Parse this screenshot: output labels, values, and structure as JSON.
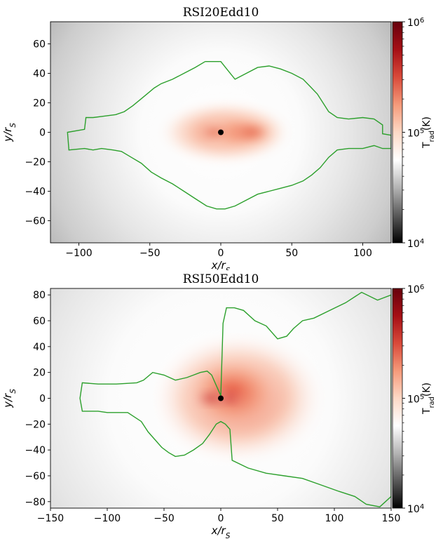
{
  "colors": {
    "contour": "#2ca02c",
    "black_hole": "#000000",
    "cmap_stops": [
      "#000000",
      "#5a5a5a",
      "#b4b4b4",
      "#ffffff",
      "#fdd9c6",
      "#f59a7a",
      "#d94a3a",
      "#a50f15",
      "#67000d"
    ]
  },
  "chart_data": [
    {
      "type": "heatmap",
      "title": "RSI20Edd10",
      "xlabel": "x/r_S",
      "ylabel": "y/r_S",
      "xlim": [
        -120,
        120
      ],
      "ylim": [
        -75,
        75
      ],
      "x_ticks": [
        -100,
        -50,
        0,
        50,
        100
      ],
      "y_ticks": [
        -60,
        -40,
        -20,
        0,
        20,
        40,
        60
      ],
      "x_tick_labels": [
        "−100",
        "−50",
        "0",
        "50",
        "100"
      ],
      "y_tick_labels": [
        "−60",
        "−40",
        "−20",
        "0",
        "20",
        "40",
        "60"
      ],
      "colorbar": {
        "label": "T_rad(K)",
        "scale": "log",
        "range": [
          10000,
          1000000
        ],
        "tick_labels": [
          "10^4",
          "10^5",
          "10^6"
        ]
      },
      "black_hole": [
        0,
        0
      ],
      "contour": [
        [
          -11,
          48
        ],
        [
          -18,
          44
        ],
        [
          -26,
          40
        ],
        [
          -34,
          36
        ],
        [
          -42,
          33
        ],
        [
          -47,
          30
        ],
        [
          -52,
          26
        ],
        [
          -57,
          22
        ],
        [
          -62,
          18
        ],
        [
          -68,
          14
        ],
        [
          -74,
          12
        ],
        [
          -82,
          11
        ],
        [
          -90,
          10
        ],
        [
          -95,
          10
        ],
        [
          -96,
          2
        ],
        [
          -108,
          0
        ],
        [
          -107,
          -12
        ],
        [
          -96,
          -11
        ],
        [
          -90,
          -12
        ],
        [
          -84,
          -11
        ],
        [
          -76,
          -12
        ],
        [
          -70,
          -13
        ],
        [
          -63,
          -17
        ],
        [
          -56,
          -21
        ],
        [
          -49,
          -27
        ],
        [
          -42,
          -31
        ],
        [
          -34,
          -35
        ],
        [
          -26,
          -40
        ],
        [
          -18,
          -45
        ],
        [
          -10,
          -50
        ],
        [
          -3,
          -52
        ],
        [
          3,
          -52
        ],
        [
          10,
          -50
        ],
        [
          18,
          -46
        ],
        [
          26,
          -42
        ],
        [
          34,
          -40
        ],
        [
          42,
          -38
        ],
        [
          50,
          -36
        ],
        [
          58,
          -33
        ],
        [
          64,
          -29
        ],
        [
          70,
          -24
        ],
        [
          76,
          -17
        ],
        [
          82,
          -12
        ],
        [
          90,
          -11
        ],
        [
          100,
          -11
        ],
        [
          108,
          -9
        ],
        [
          114,
          -11
        ],
        [
          120,
          -11
        ],
        [
          120,
          -2
        ],
        [
          114,
          -1
        ],
        [
          114,
          5
        ],
        [
          108,
          9
        ],
        [
          100,
          10
        ],
        [
          90,
          9
        ],
        [
          82,
          10
        ],
        [
          76,
          14
        ],
        [
          72,
          20
        ],
        [
          68,
          26
        ],
        [
          63,
          31
        ],
        [
          58,
          36
        ],
        [
          50,
          40
        ],
        [
          42,
          43
        ],
        [
          34,
          45
        ],
        [
          26,
          44
        ],
        [
          18,
          40
        ],
        [
          10,
          36
        ],
        [
          5,
          42
        ],
        [
          0,
          48
        ],
        [
          -5,
          48
        ],
        [
          -11,
          48
        ]
      ]
    },
    {
      "type": "heatmap",
      "title": "RSI50Edd10",
      "xlabel": "x/r_S",
      "ylabel": "y/r_S",
      "xlim": [
        -150,
        150
      ],
      "ylim": [
        -85,
        85
      ],
      "x_ticks": [
        -150,
        -100,
        -50,
        0,
        50,
        100,
        150
      ],
      "y_ticks": [
        -80,
        -60,
        -40,
        -20,
        0,
        20,
        40,
        60,
        80
      ],
      "x_tick_labels": [
        "−150",
        "−100",
        "−50",
        "0",
        "50",
        "100",
        "150"
      ],
      "y_tick_labels": [
        "−80",
        "−60",
        "−40",
        "−20",
        "0",
        "20",
        "40",
        "60",
        "80"
      ],
      "colorbar": {
        "label": "T_rad(K)",
        "scale": "log",
        "range": [
          10000,
          1000000
        ],
        "tick_labels": [
          "10^4",
          "10^5",
          "10^6"
        ]
      },
      "black_hole": [
        0,
        0
      ],
      "contour": [
        [
          0,
          2
        ],
        [
          -4,
          10
        ],
        [
          -8,
          18
        ],
        [
          -12,
          21
        ],
        [
          -18,
          20
        ],
        [
          -24,
          18
        ],
        [
          -30,
          16
        ],
        [
          -40,
          14
        ],
        [
          -50,
          18
        ],
        [
          -60,
          20
        ],
        [
          -68,
          14
        ],
        [
          -74,
          12
        ],
        [
          -92,
          11
        ],
        [
          -100,
          11
        ],
        [
          -108,
          11
        ],
        [
          -122,
          12
        ],
        [
          -124,
          0
        ],
        [
          -122,
          -10
        ],
        [
          -108,
          -10
        ],
        [
          -100,
          -11
        ],
        [
          -90,
          -11
        ],
        [
          -82,
          -11
        ],
        [
          -70,
          -18
        ],
        [
          -64,
          -26
        ],
        [
          -58,
          -32
        ],
        [
          -52,
          -38
        ],
        [
          -46,
          -42
        ],
        [
          -40,
          -45
        ],
        [
          -32,
          -44
        ],
        [
          -24,
          -40
        ],
        [
          -16,
          -35
        ],
        [
          -10,
          -28
        ],
        [
          -4,
          -20
        ],
        [
          0,
          -18
        ],
        [
          4,
          -20
        ],
        [
          8,
          -24
        ],
        [
          10,
          -48
        ],
        [
          24,
          -54
        ],
        [
          40,
          -58
        ],
        [
          56,
          -60
        ],
        [
          72,
          -62
        ],
        [
          88,
          -67
        ],
        [
          104,
          -72
        ],
        [
          118,
          -76
        ],
        [
          128,
          -82
        ],
        [
          140,
          -84
        ],
        [
          150,
          -76
        ],
        [
          150,
          80
        ],
        [
          138,
          76
        ],
        [
          124,
          82
        ],
        [
          110,
          74
        ],
        [
          96,
          68
        ],
        [
          82,
          62
        ],
        [
          72,
          60
        ],
        [
          64,
          54
        ],
        [
          58,
          48
        ],
        [
          50,
          46
        ],
        [
          40,
          56
        ],
        [
          30,
          60
        ],
        [
          20,
          68
        ],
        [
          12,
          70
        ],
        [
          5,
          70
        ],
        [
          2,
          58
        ],
        [
          1,
          30
        ],
        [
          0,
          2
        ]
      ]
    }
  ]
}
